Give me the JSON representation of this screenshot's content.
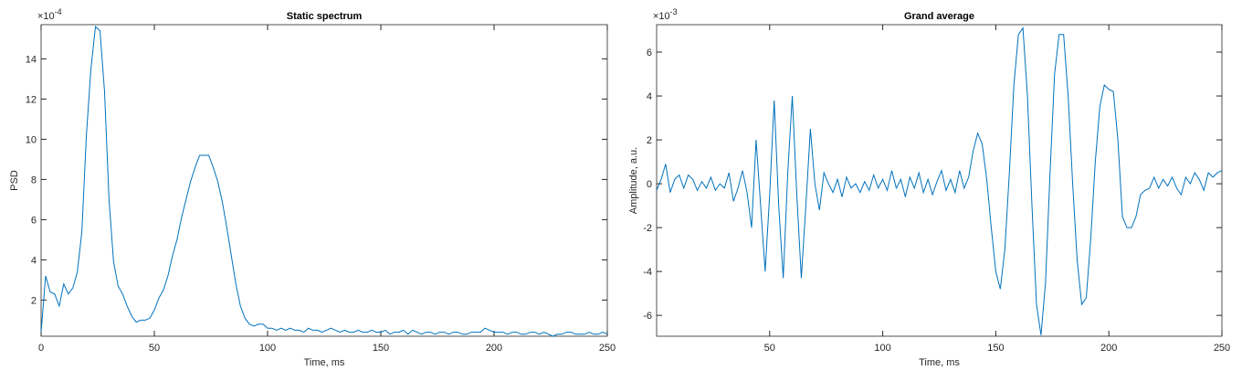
{
  "chart_data": [
    {
      "type": "line",
      "title": "Static spectrum",
      "xlabel": "Time, ms",
      "ylabel": "PSD",
      "y_multiplier": {
        "base": "×10",
        "exponent": "-4"
      },
      "xlim": [
        0,
        250
      ],
      "ylim": [
        0.2,
        15.7
      ],
      "xticks": [
        0,
        50,
        100,
        150,
        200,
        250
      ],
      "yticks": [
        2,
        4,
        6,
        8,
        10,
        12,
        14
      ],
      "x": [
        0,
        2,
        4,
        6,
        8,
        10,
        12,
        14,
        16,
        18,
        20,
        22,
        24,
        26,
        28,
        30,
        32,
        34,
        36,
        38,
        40,
        42,
        44,
        46,
        48,
        50,
        52,
        54,
        56,
        58,
        60,
        62,
        64,
        66,
        68,
        70,
        72,
        74,
        76,
        78,
        80,
        82,
        84,
        86,
        88,
        90,
        92,
        94,
        96,
        98,
        100,
        102,
        104,
        106,
        108,
        110,
        112,
        114,
        116,
        118,
        120,
        122,
        124,
        126,
        128,
        130,
        132,
        134,
        136,
        138,
        140,
        142,
        144,
        146,
        148,
        150,
        152,
        154,
        156,
        158,
        160,
        162,
        164,
        166,
        168,
        170,
        172,
        174,
        176,
        178,
        180,
        182,
        184,
        186,
        188,
        190,
        192,
        194,
        196,
        198,
        200,
        202,
        204,
        206,
        208,
        210,
        212,
        214,
        216,
        218,
        220,
        222,
        224,
        226,
        228,
        230,
        232,
        234,
        236,
        238,
        240,
        242,
        244,
        246,
        248,
        250
      ],
      "series": [
        {
          "color": "#0072bd",
          "values": [
            0.4,
            3.2,
            2.4,
            2.3,
            1.7,
            2.8,
            2.3,
            2.6,
            3.4,
            5.4,
            10.2,
            13.5,
            15.6,
            15.4,
            12.4,
            7.0,
            3.9,
            2.7,
            2.3,
            1.7,
            1.2,
            0.9,
            1.0,
            1.0,
            1.1,
            1.5,
            2.1,
            2.5,
            3.2,
            4.2,
            5.0,
            6.1,
            7.0,
            7.9,
            8.6,
            9.2,
            9.2,
            9.2,
            8.6,
            7.9,
            6.9,
            5.6,
            4.2,
            2.8,
            1.7,
            1.1,
            0.8,
            0.7,
            0.8,
            0.8,
            0.6,
            0.6,
            0.5,
            0.6,
            0.5,
            0.6,
            0.5,
            0.5,
            0.4,
            0.6,
            0.5,
            0.5,
            0.4,
            0.5,
            0.6,
            0.5,
            0.4,
            0.5,
            0.4,
            0.4,
            0.5,
            0.4,
            0.4,
            0.5,
            0.4,
            0.4,
            0.5,
            0.3,
            0.4,
            0.4,
            0.5,
            0.3,
            0.5,
            0.4,
            0.3,
            0.4,
            0.4,
            0.3,
            0.4,
            0.4,
            0.3,
            0.4,
            0.4,
            0.3,
            0.3,
            0.4,
            0.4,
            0.4,
            0.6,
            0.5,
            0.4,
            0.4,
            0.4,
            0.3,
            0.4,
            0.4,
            0.3,
            0.3,
            0.4,
            0.4,
            0.3,
            0.4,
            0.3,
            0.2,
            0.3,
            0.3,
            0.4,
            0.4,
            0.3,
            0.3,
            0.3,
            0.4,
            0.3,
            0.3,
            0.4,
            0.3
          ]
        }
      ]
    },
    {
      "type": "line",
      "title": "Grand average",
      "xlabel": "Time, ms",
      "ylabel": "Amplitude, a.u.",
      "y_multiplier": {
        "base": "×10",
        "exponent": "-3"
      },
      "xlim": [
        0,
        250
      ],
      "ylim": [
        -6.95,
        7.25
      ],
      "xticks": [
        50,
        100,
        150,
        200,
        250
      ],
      "yticks": [
        -6,
        -4,
        -2,
        0,
        2,
        4,
        6
      ],
      "x": [
        0,
        2,
        4,
        6,
        8,
        10,
        12,
        14,
        16,
        18,
        20,
        22,
        24,
        26,
        28,
        30,
        32,
        34,
        36,
        38,
        40,
        42,
        44,
        46,
        48,
        50,
        52,
        54,
        56,
        58,
        60,
        62,
        64,
        66,
        68,
        70,
        72,
        74,
        76,
        78,
        80,
        82,
        84,
        86,
        88,
        90,
        92,
        94,
        96,
        98,
        100,
        102,
        104,
        106,
        108,
        110,
        112,
        114,
        116,
        118,
        120,
        122,
        124,
        126,
        128,
        130,
        132,
        134,
        136,
        138,
        140,
        142,
        144,
        146,
        148,
        150,
        152,
        154,
        156,
        158,
        160,
        162,
        164,
        166,
        168,
        170,
        172,
        174,
        176,
        178,
        180,
        182,
        184,
        186,
        188,
        190,
        192,
        194,
        196,
        198,
        200,
        202,
        204,
        206,
        208,
        210,
        212,
        214,
        216,
        218,
        220,
        222,
        224,
        226,
        228,
        230,
        232,
        234,
        236,
        238,
        240,
        242,
        244,
        246,
        248,
        250
      ],
      "series": [
        {
          "color": "#0072bd",
          "values": [
            -0.3,
            0.2,
            0.9,
            -0.4,
            0.2,
            0.4,
            -0.2,
            0.4,
            0.2,
            -0.3,
            0.1,
            -0.2,
            0.3,
            -0.3,
            0.0,
            -0.2,
            0.5,
            -0.8,
            -0.2,
            0.6,
            -0.4,
            -2.0,
            2.0,
            -1.0,
            -4.0,
            -0.5,
            3.8,
            -1.0,
            -4.3,
            0.5,
            4.0,
            -0.5,
            -4.3,
            -1.0,
            2.5,
            0.0,
            -1.2,
            0.5,
            0.0,
            -0.4,
            0.2,
            -0.6,
            0.3,
            -0.2,
            0.0,
            -0.4,
            0.1,
            -0.3,
            0.4,
            -0.2,
            0.2,
            -0.3,
            0.6,
            -0.2,
            0.2,
            -0.6,
            0.3,
            -0.2,
            0.5,
            -0.4,
            0.2,
            -0.5,
            0.1,
            0.6,
            -0.3,
            0.2,
            -0.4,
            0.6,
            -0.2,
            0.3,
            1.5,
            2.3,
            1.8,
            0.2,
            -2.0,
            -4.0,
            -4.8,
            -3.0,
            0.5,
            4.5,
            6.8,
            7.1,
            4.0,
            -1.0,
            -5.5,
            -6.9,
            -4.5,
            0.5,
            5.0,
            6.8,
            6.8,
            4.0,
            0.0,
            -3.5,
            -5.5,
            -5.2,
            -2.5,
            1.0,
            3.5,
            4.5,
            4.3,
            4.2,
            2.0,
            -1.5,
            -2.0,
            -2.0,
            -1.5,
            -0.5,
            -0.3,
            -0.2,
            0.3,
            -0.2,
            0.2,
            -0.1,
            0.3,
            -0.2,
            -0.5,
            0.3,
            0.0,
            0.5,
            0.2,
            -0.3,
            0.5,
            0.3,
            0.5,
            0.6
          ]
        }
      ]
    }
  ]
}
